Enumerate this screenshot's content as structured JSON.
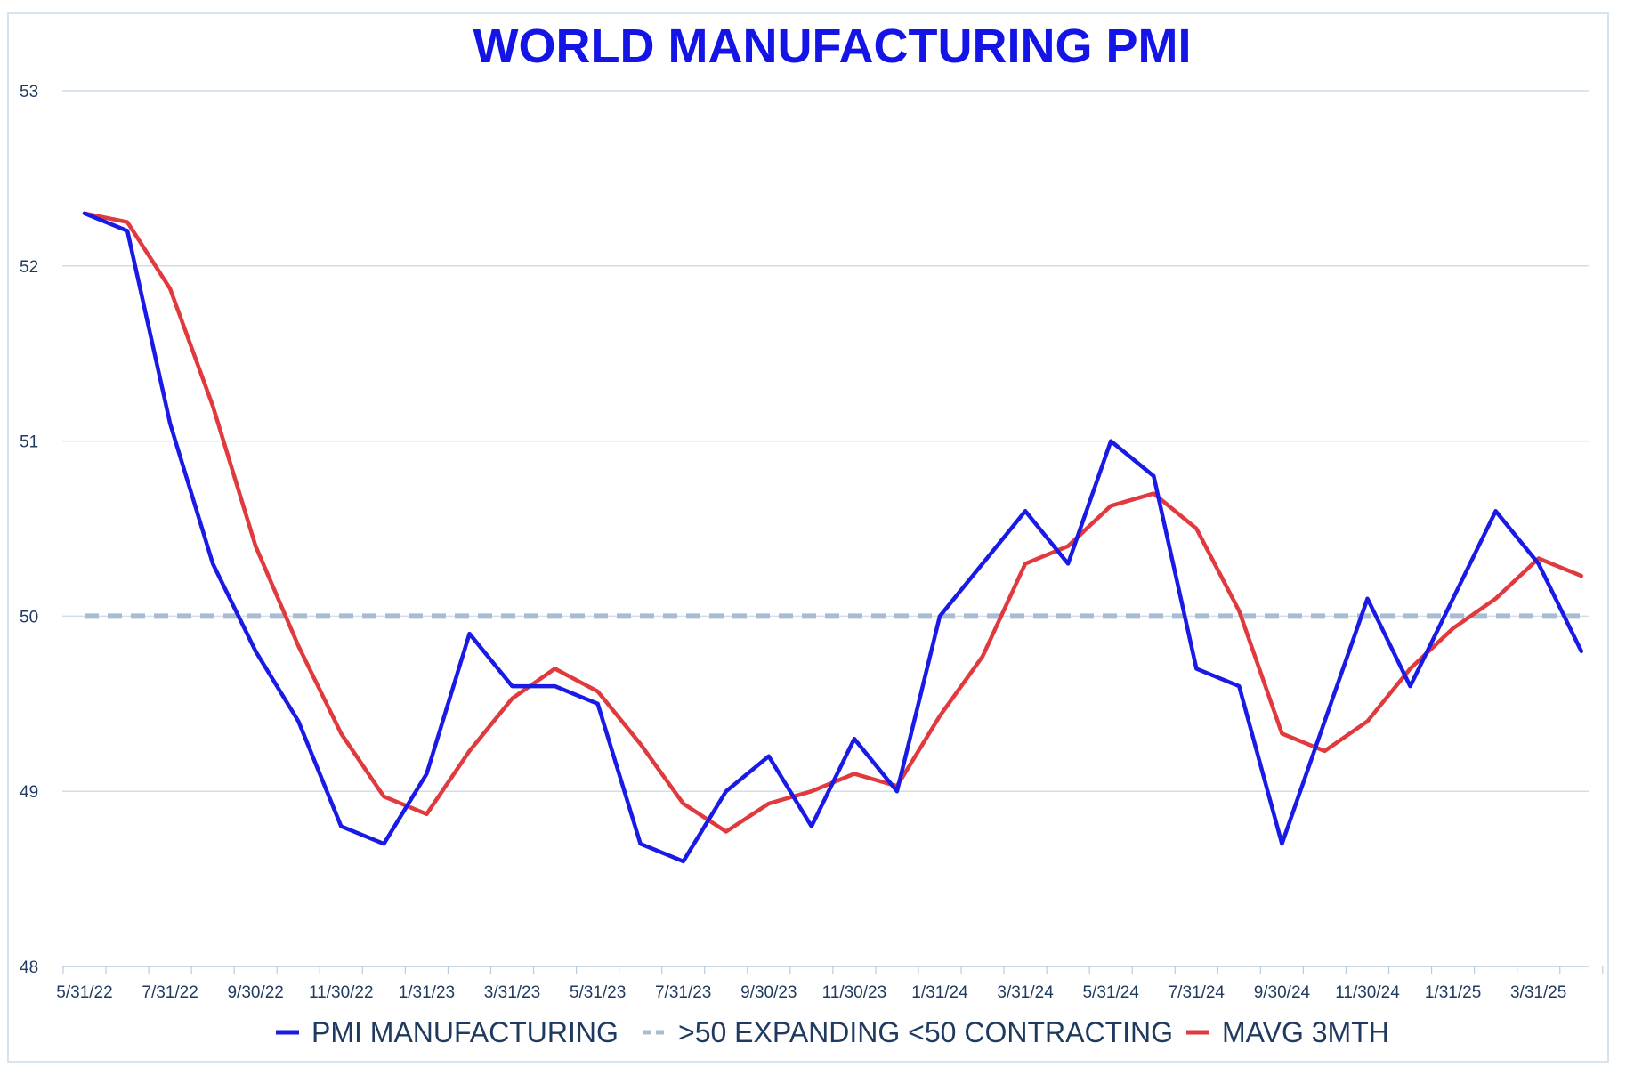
{
  "chart_data": {
    "type": "line",
    "title": "WORLD MANUFACTURING PMI",
    "xlabel": "",
    "ylabel": "",
    "ylim": [
      48,
      53
    ],
    "yticks": [
      48,
      49,
      50,
      51,
      52,
      53
    ],
    "x_tick_labels": [
      "5/31/22",
      "7/31/22",
      "9/30/22",
      "11/30/22",
      "1/31/23",
      "3/31/23",
      "5/31/23",
      "7/31/23",
      "9/30/23",
      "11/30/23",
      "1/31/24",
      "3/31/24",
      "5/31/24",
      "7/31/24",
      "9/30/24",
      "11/30/24",
      "1/31/25",
      "3/31/25"
    ],
    "x": [
      "5/31/22",
      "6/30/22",
      "7/31/22",
      "8/31/22",
      "9/30/22",
      "10/31/22",
      "11/30/22",
      "12/31/22",
      "1/31/23",
      "2/28/23",
      "3/31/23",
      "4/30/23",
      "5/31/23",
      "6/30/23",
      "7/31/23",
      "8/31/23",
      "9/30/23",
      "10/31/23",
      "11/30/23",
      "12/31/23",
      "1/31/24",
      "2/29/24",
      "3/31/24",
      "4/30/24",
      "5/31/24",
      "6/30/24",
      "7/31/24",
      "8/31/24",
      "9/30/24",
      "10/31/24",
      "11/30/24",
      "12/31/24",
      "1/31/25",
      "2/28/25",
      "3/31/25",
      "4/30/25"
    ],
    "grid": true,
    "legend_position": "bottom",
    "series": [
      {
        "name": "PMI MANUFACTURING",
        "color": "#1a1ae6",
        "style": "solid",
        "values": [
          52.3,
          52.2,
          51.1,
          50.3,
          49.8,
          49.4,
          48.8,
          48.7,
          49.1,
          49.9,
          49.6,
          49.6,
          49.5,
          48.7,
          48.6,
          49.0,
          49.2,
          48.8,
          49.3,
          49.0,
          50.0,
          50.3,
          50.6,
          50.3,
          51.0,
          50.8,
          49.7,
          49.6,
          48.7,
          49.4,
          50.1,
          49.6,
          50.1,
          50.6,
          50.3,
          49.8
        ]
      },
      {
        "name": ">50 EXPANDING <50 CONTRACTING",
        "color": "#a9bcd4",
        "style": "dashed",
        "values": [
          50,
          50,
          50,
          50,
          50,
          50,
          50,
          50,
          50,
          50,
          50,
          50,
          50,
          50,
          50,
          50,
          50,
          50,
          50,
          50,
          50,
          50,
          50,
          50,
          50,
          50,
          50,
          50,
          50,
          50,
          50,
          50,
          50,
          50,
          50,
          50
        ]
      },
      {
        "name": "MAVG 3MTH",
        "color": "#e0393e",
        "style": "solid",
        "values": [
          52.3,
          52.25,
          51.87,
          51.2,
          50.4,
          49.83,
          49.33,
          48.97,
          48.87,
          49.23,
          49.53,
          49.7,
          49.57,
          49.27,
          48.93,
          48.77,
          48.93,
          49.0,
          49.1,
          49.03,
          49.43,
          49.77,
          50.3,
          50.4,
          50.63,
          50.7,
          50.5,
          50.03,
          49.33,
          49.23,
          49.4,
          49.7,
          49.93,
          50.1,
          50.33,
          50.23
        ]
      }
    ]
  }
}
